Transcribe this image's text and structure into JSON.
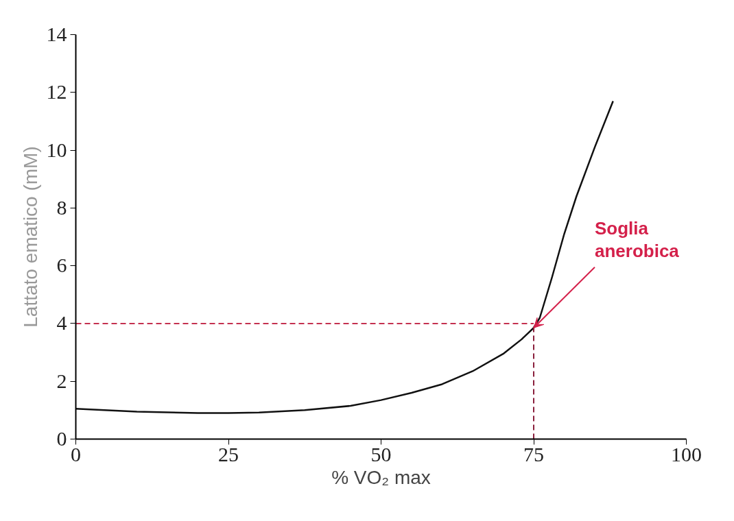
{
  "chart_data": {
    "type": "line",
    "xlabel": "% VO₂ max",
    "ylabel": "Lattato ematico (mM)",
    "x": [
      0,
      10,
      20,
      25,
      30,
      37.5,
      45,
      50,
      55,
      60,
      65,
      70,
      73,
      75,
      76,
      78,
      80,
      82,
      85,
      88
    ],
    "series": [
      {
        "color": "#111111",
        "values": [
          1.05,
          0.95,
          0.9,
          0.9,
          0.92,
          1.0,
          1.15,
          1.35,
          1.6,
          1.9,
          2.35,
          2.95,
          3.45,
          3.85,
          4.2,
          5.6,
          7.1,
          8.4,
          10.1,
          11.7
        ]
      }
    ],
    "xlim": [
      0,
      100
    ],
    "ylim": [
      0,
      14
    ],
    "xticks": [
      0,
      25,
      50,
      75,
      100
    ],
    "yticks": [
      0,
      2,
      4,
      6,
      8,
      10,
      12,
      14
    ],
    "grid": false,
    "marker": "none",
    "line_style": "solid",
    "ref_lines": [
      {
        "axis": "y",
        "value": 4,
        "color": "#c4304f",
        "line_style": "dashed"
      },
      {
        "axis": "x",
        "value": 75,
        "color": "#8a1f3c",
        "line_style": "dashed"
      }
    ],
    "annotations": [
      {
        "text": "Soglia\nanerobica",
        "x": 75,
        "y": 3.85
      }
    ]
  }
}
